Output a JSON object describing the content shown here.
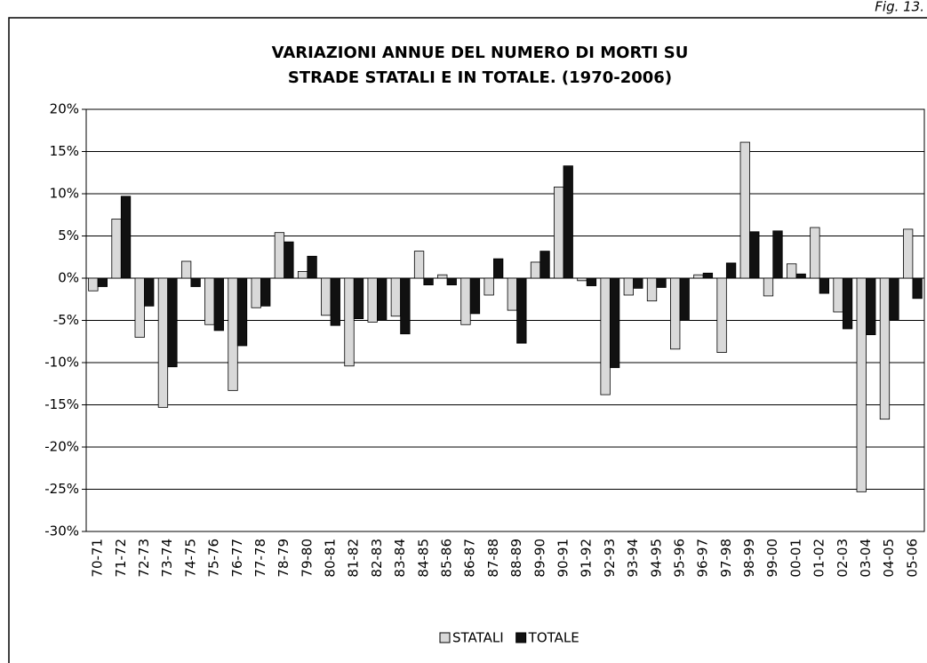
{
  "chart_data": {
    "type": "bar",
    "figure_label": "Fig. 13.",
    "title": [
      "VARIAZIONI ANNUE DEL NUMERO DI MORTI SU",
      "STRADE STATALI E IN TOTALE. (1970-2006)"
    ],
    "categories": [
      "70-71",
      "71-72",
      "72-73",
      "73-74",
      "74-75",
      "75-76",
      "76-77",
      "77-78",
      "78-79",
      "79-80",
      "80-81",
      "81-82",
      "82-83",
      "83-84",
      "84-85",
      "85-86",
      "86-87",
      "87-88",
      "88-89",
      "89-90",
      "90-91",
      "91-92",
      "92-93",
      "93-94",
      "94-95",
      "95-96",
      "96-97",
      "97-98",
      "98-99",
      "99-00",
      "00-01",
      "01-02",
      "02-03",
      "03-04",
      "04-05",
      "05-06"
    ],
    "series": [
      {
        "name": "STATALI",
        "color": "#d9d9d9",
        "values": [
          -1.5,
          7.0,
          -7.0,
          -15.3,
          2.0,
          -5.5,
          -13.3,
          -3.5,
          5.4,
          0.8,
          -4.4,
          -10.4,
          -5.2,
          -4.5,
          3.2,
          0.4,
          -5.5,
          -2.0,
          -3.8,
          1.9,
          10.8,
          -0.3,
          -13.8,
          -2.0,
          -2.7,
          -8.4,
          0.4,
          -8.8,
          16.1,
          -2.1,
          1.7,
          6.0,
          -4.0,
          -25.3,
          -16.7,
          5.8
        ]
      },
      {
        "name": "TOTALE",
        "color": "#111111",
        "values": [
          -1.0,
          9.7,
          -3.3,
          -10.5,
          -1.0,
          -6.2,
          -8.0,
          -3.3,
          4.3,
          2.6,
          -5.6,
          -4.8,
          -4.9,
          -6.6,
          -0.8,
          -0.8,
          -4.2,
          2.3,
          -7.7,
          3.2,
          13.3,
          -0.9,
          -10.6,
          -1.2,
          -1.1,
          -5.0,
          0.6,
          1.8,
          5.5,
          5.6,
          0.5,
          -1.8,
          -6.0,
          -6.7,
          -4.9,
          -2.4
        ]
      }
    ],
    "ylim": [
      -30,
      20
    ],
    "yticks": [
      {
        "value": -30,
        "label": "-30%"
      },
      {
        "value": -25,
        "label": "-25%"
      },
      {
        "value": -20,
        "label": "-20%"
      },
      {
        "value": -15,
        "label": "-15%"
      },
      {
        "value": -10,
        "label": "-10%"
      },
      {
        "value": -5,
        "label": "-5%"
      },
      {
        "value": 0,
        "label": "0%"
      },
      {
        "value": 5,
        "label": "5%"
      },
      {
        "value": 10,
        "label": "10%"
      },
      {
        "value": 15,
        "label": "15%"
      },
      {
        "value": 20,
        "label": "20%"
      }
    ],
    "grid": true,
    "legend": "bottom"
  }
}
